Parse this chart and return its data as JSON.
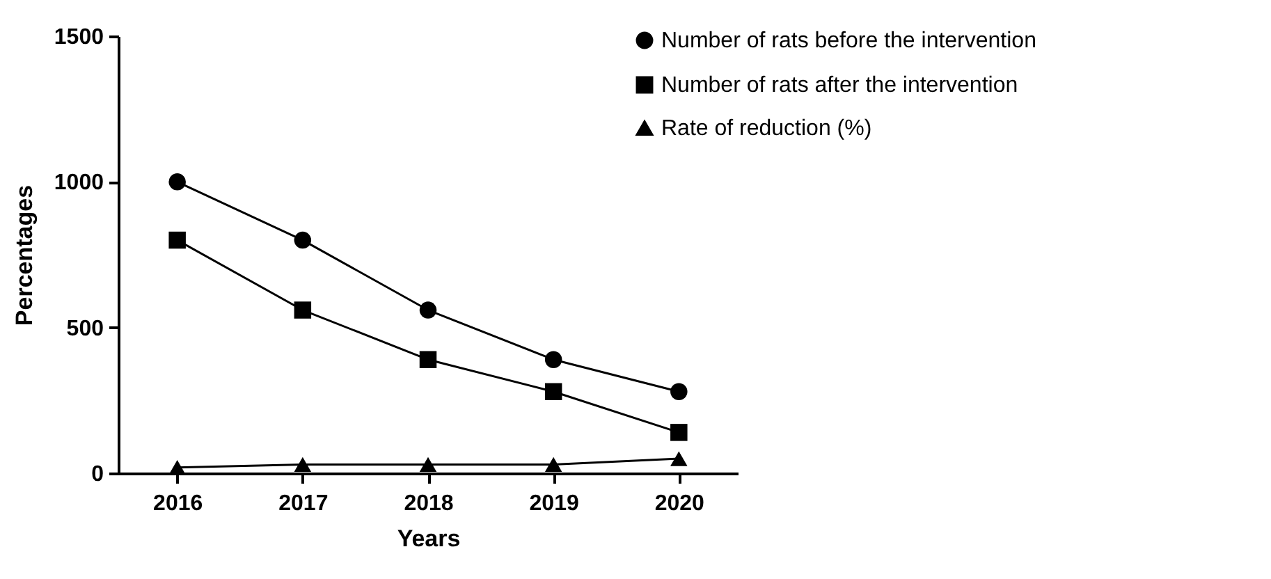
{
  "chart_data": {
    "type": "line",
    "xlabel": "Years",
    "ylabel": "Percentages",
    "categories": [
      "2016",
      "2017",
      "2018",
      "2019",
      "2020"
    ],
    "ylim": [
      0,
      1500
    ],
    "yticks": [
      0,
      500,
      1000,
      1500
    ],
    "grid": false,
    "legend": "top right",
    "series": [
      {
        "name": "Number of rats before the intervention",
        "color": "#000000",
        "marker": "circle",
        "values": [
          1000,
          800,
          560,
          390,
          280
        ]
      },
      {
        "name": "Number of rats after the intervention",
        "color": "#000000",
        "marker": "square",
        "values": [
          800,
          560,
          390,
          280,
          140
        ]
      },
      {
        "name": "Rate of reduction (%)",
        "color": "#000000",
        "marker": "triangle",
        "values": [
          20,
          30,
          30,
          30,
          50
        ]
      }
    ]
  }
}
